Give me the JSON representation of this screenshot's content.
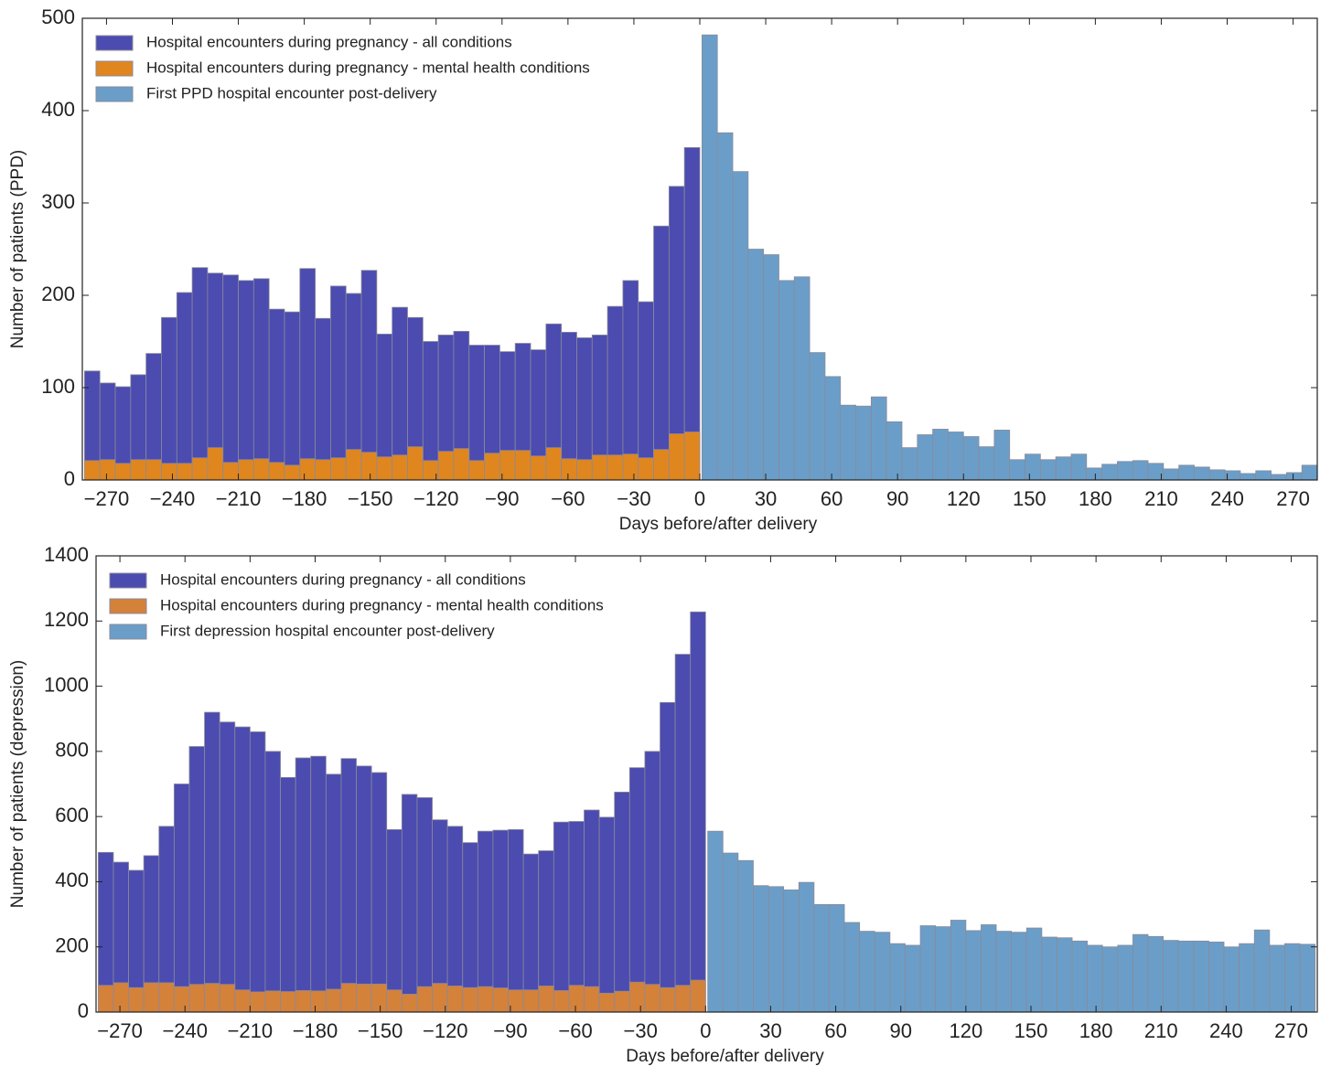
{
  "chart_data": [
    {
      "type": "histogram",
      "xlabel": "Days before/after delivery",
      "ylabel": "Number of patients (PPD)",
      "xlim": [
        -281,
        281
      ],
      "ylim": [
        0,
        500
      ],
      "yticks": [
        0,
        100,
        200,
        300,
        400,
        500
      ],
      "xticks": [
        {
          "value": -270,
          "label": "−270"
        },
        {
          "value": -240,
          "label": "−240"
        },
        {
          "value": -210,
          "label": "−210"
        },
        {
          "value": -180,
          "label": "−180"
        },
        {
          "value": -150,
          "label": "−150"
        },
        {
          "value": -120,
          "label": "−120"
        },
        {
          "value": -90,
          "label": "−90"
        },
        {
          "value": -60,
          "label": "−60"
        },
        {
          "value": -30,
          "label": "−30"
        },
        0,
        30,
        60,
        90,
        120,
        150,
        180,
        210,
        240,
        270
      ],
      "legend": "upper left",
      "series": [
        {
          "name": "Hospital encounters during pregnancy - all conditions",
          "color": "#4b4bb0",
          "bins": [
            -280,
            -273,
            -266,
            -259,
            -252,
            -245,
            -238,
            -231,
            -224,
            -217,
            -210,
            -203,
            -196,
            -189,
            -182,
            -175,
            -168,
            -161,
            -154,
            -147,
            -140,
            -133,
            -126,
            -119,
            -112,
            -105,
            -98,
            -91,
            -84,
            -77,
            -70,
            -63,
            -56,
            -49,
            -42,
            -35,
            -28,
            -21,
            -14,
            -7,
            0
          ],
          "values": [
            118,
            105,
            101,
            114,
            137,
            176,
            203,
            230,
            224,
            222,
            216,
            218,
            185,
            182,
            229,
            175,
            210,
            202,
            227,
            158,
            187,
            176,
            150,
            157,
            161,
            146,
            146,
            139,
            148,
            141,
            169,
            160,
            154,
            157,
            188,
            216,
            193,
            275,
            318,
            360
          ]
        },
        {
          "name": "Hospital encounters during pregnancy - mental health conditions",
          "color": "#e0861f",
          "bins": [
            -280,
            -273,
            -266,
            -259,
            -252,
            -245,
            -238,
            -231,
            -224,
            -217,
            -210,
            -203,
            -196,
            -189,
            -182,
            -175,
            -168,
            -161,
            -154,
            -147,
            -140,
            -133,
            -126,
            -119,
            -112,
            -105,
            -98,
            -91,
            -84,
            -77,
            -70,
            -63,
            -56,
            -49,
            -42,
            -35,
            -28,
            -21,
            -14,
            -7,
            0
          ],
          "values": [
            21,
            22,
            18,
            22,
            22,
            18,
            18,
            24,
            35,
            19,
            22,
            23,
            19,
            16,
            23,
            22,
            24,
            33,
            30,
            25,
            27,
            36,
            21,
            31,
            34,
            21,
            29,
            32,
            32,
            26,
            35,
            23,
            22,
            27,
            27,
            28,
            24,
            33,
            50,
            52
          ]
        },
        {
          "name": "First PPD hospital encounter post-delivery",
          "color": "#6a9ec8",
          "bins": [
            1,
            8,
            15,
            22,
            29,
            36,
            43,
            50,
            57,
            64,
            71,
            78,
            85,
            92,
            99,
            106,
            113,
            120,
            127,
            134,
            141,
            148,
            155,
            162,
            169,
            176,
            183,
            190,
            197,
            204,
            211,
            218,
            225,
            232,
            239,
            246,
            253,
            260,
            267,
            274,
            281
          ],
          "values": [
            482,
            376,
            334,
            250,
            244,
            216,
            220,
            138,
            112,
            81,
            80,
            90,
            63,
            35,
            49,
            55,
            52,
            47,
            36,
            54,
            22,
            28,
            22,
            25,
            28,
            13,
            17,
            20,
            21,
            18,
            12,
            16,
            14,
            11,
            10,
            7,
            10,
            6,
            8,
            16
          ]
        }
      ]
    },
    {
      "type": "histogram",
      "xlabel": "Days before/after delivery",
      "ylabel": "Number of patients (depression)",
      "xlim": [
        -281,
        282
      ],
      "ylim": [
        0,
        1400
      ],
      "yticks": [
        0,
        200,
        400,
        600,
        800,
        1000,
        1200,
        1400
      ],
      "xticks": [
        {
          "value": -270,
          "label": "−270"
        },
        {
          "value": -240,
          "label": "−240"
        },
        {
          "value": -210,
          "label": "−210"
        },
        {
          "value": -180,
          "label": "−180"
        },
        {
          "value": -150,
          "label": "−150"
        },
        {
          "value": -120,
          "label": "−120"
        },
        {
          "value": -90,
          "label": "−90"
        },
        {
          "value": -60,
          "label": "−60"
        },
        {
          "value": -30,
          "label": "−30"
        },
        0,
        30,
        60,
        90,
        120,
        150,
        180,
        210,
        240,
        270
      ],
      "legend": "upper left",
      "series": [
        {
          "name": "Hospital encounters during pregnancy - all conditions",
          "color": "#4b4bb0",
          "bins": [
            -280,
            -273,
            -266,
            -259,
            -252,
            -245,
            -238,
            -231,
            -224,
            -217,
            -210,
            -203,
            -196,
            -189,
            -182,
            -175,
            -168,
            -161,
            -154,
            -147,
            -140,
            -133,
            -126,
            -119,
            -112,
            -105,
            -98,
            -91,
            -84,
            -77,
            -70,
            -63,
            -56,
            -49,
            -42,
            -35,
            -28,
            -21,
            -14,
            -7,
            0
          ],
          "values": [
            490,
            460,
            435,
            480,
            570,
            700,
            815,
            920,
            890,
            875,
            860,
            800,
            720,
            780,
            785,
            730,
            778,
            755,
            735,
            560,
            668,
            658,
            590,
            570,
            520,
            555,
            558,
            560,
            485,
            495,
            583,
            585,
            620,
            598,
            675,
            750,
            800,
            950,
            1098,
            1228
          ]
        },
        {
          "name": "Hospital encounters during pregnancy - mental health conditions",
          "color": "#d4813a",
          "bins": [
            -280,
            -273,
            -266,
            -259,
            -252,
            -245,
            -238,
            -231,
            -224,
            -217,
            -210,
            -203,
            -196,
            -189,
            -182,
            -175,
            -168,
            -161,
            -154,
            -147,
            -140,
            -133,
            -126,
            -119,
            -112,
            -105,
            -98,
            -91,
            -84,
            -77,
            -70,
            -63,
            -56,
            -49,
            -42,
            -35,
            -28,
            -21,
            -14,
            -7,
            0
          ],
          "values": [
            82,
            90,
            75,
            90,
            90,
            78,
            85,
            88,
            85,
            68,
            62,
            65,
            63,
            66,
            65,
            70,
            88,
            86,
            86,
            68,
            55,
            78,
            88,
            80,
            75,
            78,
            74,
            68,
            68,
            80,
            66,
            82,
            78,
            58,
            64,
            92,
            85,
            75,
            82,
            98
          ]
        },
        {
          "name": "First depression hospital encounter post-delivery",
          "color": "#6a9ec8",
          "bins": [
            1,
            8,
            15,
            22,
            29,
            36,
            43,
            50,
            57,
            64,
            71,
            78,
            85,
            92,
            99,
            106,
            113,
            120,
            127,
            134,
            141,
            148,
            155,
            162,
            169,
            176,
            183,
            190,
            197,
            204,
            211,
            218,
            225,
            232,
            239,
            246,
            253,
            260,
            267,
            274,
            281
          ],
          "values": [
            555,
            488,
            465,
            388,
            385,
            375,
            398,
            330,
            330,
            275,
            248,
            245,
            210,
            205,
            265,
            262,
            282,
            250,
            268,
            248,
            245,
            258,
            230,
            228,
            218,
            205,
            200,
            205,
            238,
            232,
            220,
            218,
            218,
            215,
            200,
            210,
            252,
            205,
            210,
            208
          ]
        }
      ]
    }
  ]
}
